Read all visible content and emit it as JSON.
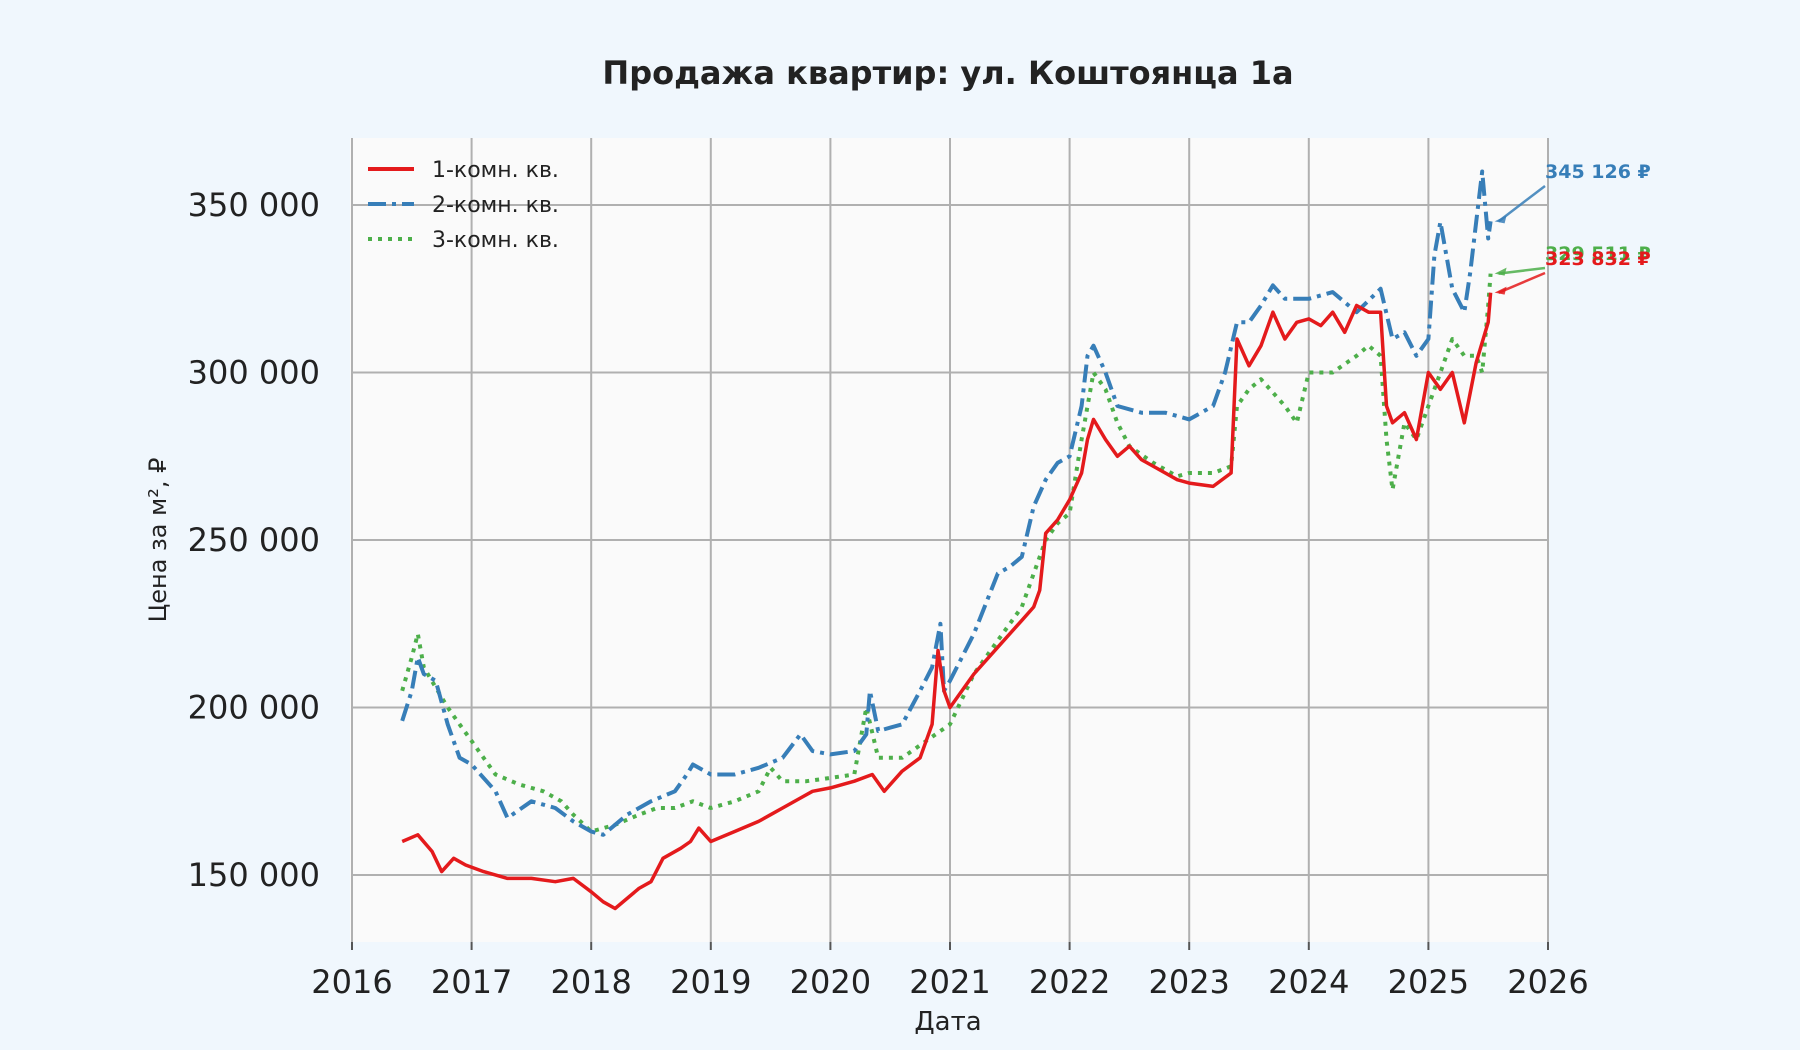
{
  "chart_data": {
    "type": "line",
    "title": "Продажа квартир: ул. Коштоянца 1а",
    "xlabel": "Дата",
    "ylabel": "Цена за м², ₽",
    "xlim": [
      2016.0,
      2026.0
    ],
    "ylim": [
      130000,
      370000
    ],
    "x_ticks": [
      2016,
      2017,
      2018,
      2019,
      2020,
      2021,
      2022,
      2023,
      2024,
      2025,
      2026
    ],
    "x_tick_labels": [
      "2016",
      "2017",
      "2018",
      "2019",
      "2020",
      "2021",
      "2022",
      "2023",
      "2024",
      "2025",
      "2026"
    ],
    "y_ticks": [
      150000,
      200000,
      250000,
      300000,
      350000
    ],
    "y_tick_labels": [
      "150 000",
      "200 000",
      "250 000",
      "300 000",
      "350 000"
    ],
    "grid": true,
    "legend": "top-left",
    "series": [
      {
        "name": "1-комн. кв.",
        "color": "#e41a1c",
        "style": "solid",
        "x": [
          2016.42,
          2016.55,
          2016.67,
          2016.75,
          2016.85,
          2016.95,
          2017.1,
          2017.3,
          2017.5,
          2017.7,
          2017.85,
          2018.0,
          2018.1,
          2018.2,
          2018.4,
          2018.5,
          2018.6,
          2018.75,
          2018.83,
          2018.9,
          2019.0,
          2019.2,
          2019.4,
          2019.5,
          2019.6,
          2019.75,
          2019.85,
          2020.0,
          2020.2,
          2020.35,
          2020.45,
          2020.6,
          2020.75,
          2020.85,
          2020.9,
          2020.95,
          2021.0,
          2021.2,
          2021.4,
          2021.6,
          2021.7,
          2021.75,
          2021.8,
          2021.9,
          2022.0,
          2022.1,
          2022.15,
          2022.2,
          2022.3,
          2022.4,
          2022.5,
          2022.6,
          2022.8,
          2022.9,
          2023.0,
          2023.2,
          2023.35,
          2023.4,
          2023.5,
          2023.6,
          2023.7,
          2023.8,
          2023.9,
          2024.0,
          2024.1,
          2024.2,
          2024.3,
          2024.4,
          2024.5,
          2024.6,
          2024.65,
          2024.7,
          2024.8,
          2024.9,
          2025.0,
          2025.1,
          2025.2,
          2025.3,
          2025.4,
          2025.5,
          2025.52
        ],
        "y": [
          160000,
          162000,
          157000,
          151000,
          155000,
          153000,
          151000,
          149000,
          149000,
          148000,
          149000,
          145000,
          142000,
          140000,
          146000,
          148000,
          155000,
          158000,
          160000,
          164000,
          160000,
          163000,
          166000,
          168000,
          170000,
          173000,
          175000,
          176000,
          178000,
          180000,
          175000,
          181000,
          185000,
          195000,
          217000,
          205000,
          200000,
          210000,
          218000,
          226000,
          230000,
          235000,
          252000,
          256000,
          262000,
          270000,
          280000,
          286000,
          280000,
          275000,
          278000,
          274000,
          270000,
          268000,
          267000,
          266000,
          270000,
          310000,
          302000,
          308000,
          318000,
          310000,
          315000,
          316000,
          314000,
          318000,
          312000,
          320000,
          318000,
          318000,
          290000,
          285000,
          288000,
          280000,
          300000,
          295000,
          300000,
          285000,
          303000,
          315000,
          323832
        ]
      },
      {
        "name": "2-комн. кв.",
        "color": "#377eb8",
        "style": "dashdot",
        "x": [
          2016.42,
          2016.5,
          2016.55,
          2016.6,
          2016.7,
          2016.8,
          2016.9,
          2017.0,
          2017.2,
          2017.3,
          2017.5,
          2017.7,
          2017.85,
          2018.0,
          2018.1,
          2018.3,
          2018.5,
          2018.7,
          2018.8,
          2018.85,
          2019.0,
          2019.2,
          2019.4,
          2019.6,
          2019.75,
          2019.85,
          2020.0,
          2020.2,
          2020.3,
          2020.33,
          2020.4,
          2020.6,
          2020.75,
          2020.85,
          2020.92,
          2020.95,
          2021.0,
          2021.2,
          2021.4,
          2021.5,
          2021.6,
          2021.7,
          2021.8,
          2021.9,
          2022.0,
          2022.1,
          2022.15,
          2022.2,
          2022.3,
          2022.4,
          2022.6,
          2022.8,
          2023.0,
          2023.2,
          2023.3,
          2023.4,
          2023.5,
          2023.6,
          2023.7,
          2023.8,
          2024.0,
          2024.2,
          2024.4,
          2024.6,
          2024.7,
          2024.8,
          2024.9,
          2025.0,
          2025.05,
          2025.1,
          2025.2,
          2025.3,
          2025.35,
          2025.4,
          2025.45,
          2025.5,
          2025.52
        ],
        "y": [
          196000,
          205000,
          215000,
          210000,
          208000,
          195000,
          185000,
          183000,
          175000,
          167000,
          172000,
          170000,
          166000,
          163000,
          162000,
          168000,
          172000,
          175000,
          180000,
          183000,
          180000,
          180000,
          182000,
          185000,
          192000,
          187000,
          186000,
          187000,
          192000,
          205000,
          193000,
          195000,
          205000,
          212000,
          225000,
          205000,
          208000,
          222000,
          240000,
          242000,
          245000,
          260000,
          268000,
          273000,
          275000,
          290000,
          305000,
          308000,
          300000,
          290000,
          288000,
          288000,
          286000,
          290000,
          300000,
          315000,
          315000,
          320000,
          326000,
          322000,
          322000,
          324000,
          318000,
          325000,
          310000,
          312000,
          305000,
          310000,
          335000,
          345000,
          325000,
          318000,
          330000,
          345000,
          360000,
          340000,
          345126
        ]
      },
      {
        "name": "3-комн. кв.",
        "color": "#4daf4a",
        "style": "dotted",
        "x": [
          2016.42,
          2016.5,
          2016.55,
          2016.6,
          2016.7,
          2016.8,
          2016.9,
          2017.0,
          2017.2,
          2017.4,
          2017.6,
          2017.75,
          2017.85,
          2018.0,
          2018.2,
          2018.4,
          2018.55,
          2018.7,
          2018.85,
          2019.0,
          2019.2,
          2019.4,
          2019.5,
          2019.6,
          2019.8,
          2020.0,
          2020.2,
          2020.3,
          2020.4,
          2020.6,
          2020.8,
          2021.0,
          2021.2,
          2021.4,
          2021.6,
          2021.8,
          2021.9,
          2022.0,
          2022.1,
          2022.2,
          2022.3,
          2022.4,
          2022.5,
          2022.7,
          2022.9,
          2023.0,
          2023.2,
          2023.35,
          2023.4,
          2023.5,
          2023.6,
          2023.8,
          2023.9,
          2024.0,
          2024.2,
          2024.4,
          2024.5,
          2024.6,
          2024.65,
          2024.7,
          2024.8,
          2024.9,
          2025.0,
          2025.1,
          2025.2,
          2025.3,
          2025.4,
          2025.45,
          2025.5,
          2025.52
        ],
        "y": [
          205000,
          215000,
          222000,
          212000,
          206000,
          200000,
          195000,
          190000,
          180000,
          177000,
          175000,
          172000,
          168000,
          163000,
          165000,
          168000,
          170000,
          170000,
          172000,
          170000,
          172000,
          175000,
          182000,
          178000,
          178000,
          179000,
          180000,
          200000,
          185000,
          185000,
          190000,
          195000,
          210000,
          220000,
          230000,
          250000,
          255000,
          258000,
          280000,
          300000,
          295000,
          285000,
          278000,
          273000,
          269000,
          270000,
          270000,
          272000,
          290000,
          295000,
          298000,
          290000,
          285000,
          300000,
          300000,
          305000,
          308000,
          305000,
          280000,
          265000,
          285000,
          280000,
          290000,
          300000,
          310000,
          305000,
          305000,
          300000,
          320000,
          329511
        ]
      }
    ],
    "annotations": [
      {
        "series": "2-комн. кв.",
        "text": "345 126 ₽",
        "value": 345126
      },
      {
        "series": "3-комн. кв.",
        "text": "329 511 ₽",
        "value": 329511
      },
      {
        "series": "1-комн. кв.",
        "text": "323 832 ₽",
        "value": 323832
      }
    ]
  }
}
